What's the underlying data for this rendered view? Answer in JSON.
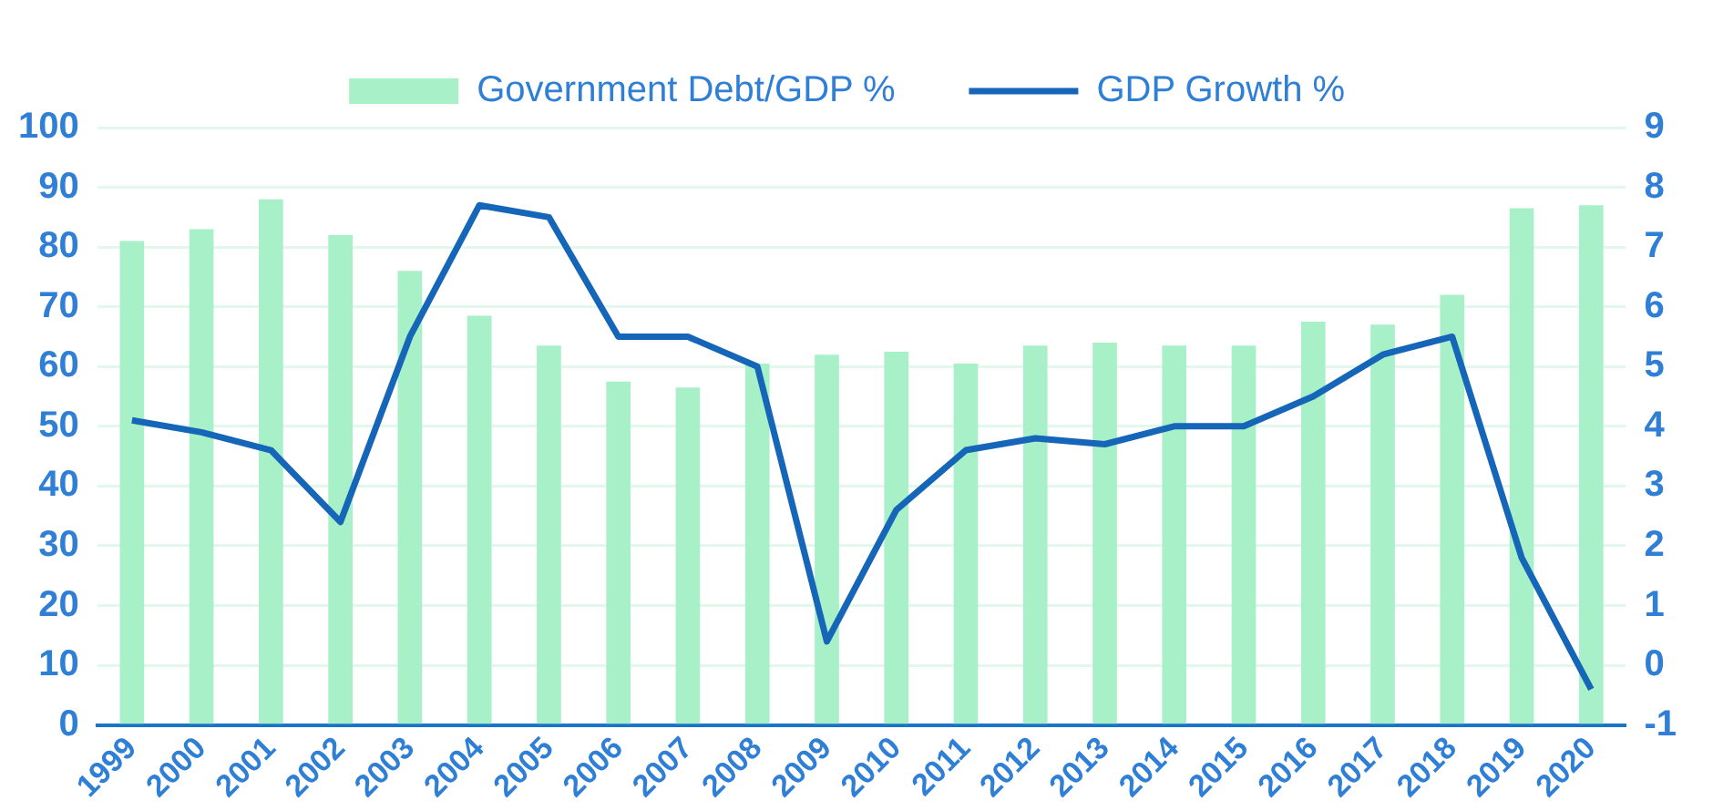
{
  "chart_data": {
    "type": "bar",
    "categories": [
      "1999",
      "2000",
      "2001",
      "2002",
      "2003",
      "2004",
      "2005",
      "2006",
      "2007",
      "2008",
      "2009",
      "2010",
      "2011",
      "2012",
      "2013",
      "2014",
      "2015",
      "2016",
      "2017",
      "2018",
      "2019",
      "2020"
    ],
    "series": [
      {
        "name": "Government Debt/GDP %",
        "color": "#a8f0c8",
        "values": [
          81,
          83,
          88,
          82,
          76,
          68.5,
          63.5,
          57.5,
          56.5,
          60.5,
          62,
          62.5,
          60.5,
          63.5,
          64,
          63.5,
          63.5,
          67.5,
          67,
          72,
          86.5,
          87
        ]
      },
      {
        "name": "GDP Growth %",
        "type": "line",
        "axis": "y2",
        "color": "#1565b8",
        "values": [
          4.1,
          3.9,
          3.6,
          2.4,
          5.5,
          7.7,
          7.5,
          5.5,
          5.5,
          5.0,
          0.4,
          2.6,
          3.6,
          3.8,
          3.7,
          4.0,
          4.0,
          4.5,
          5.2,
          5.5,
          1.8,
          -0.4
        ]
      }
    ],
    "ylim": [
      0,
      100
    ],
    "yticks": [
      0,
      10,
      20,
      30,
      40,
      50,
      60,
      70,
      80,
      90,
      100
    ],
    "y2lim": [
      -1,
      9
    ],
    "y2ticks": [
      -1,
      0,
      1,
      2,
      3,
      4,
      5,
      6,
      7,
      8,
      9
    ],
    "grid": "y",
    "legend": "top",
    "marker": "none"
  }
}
